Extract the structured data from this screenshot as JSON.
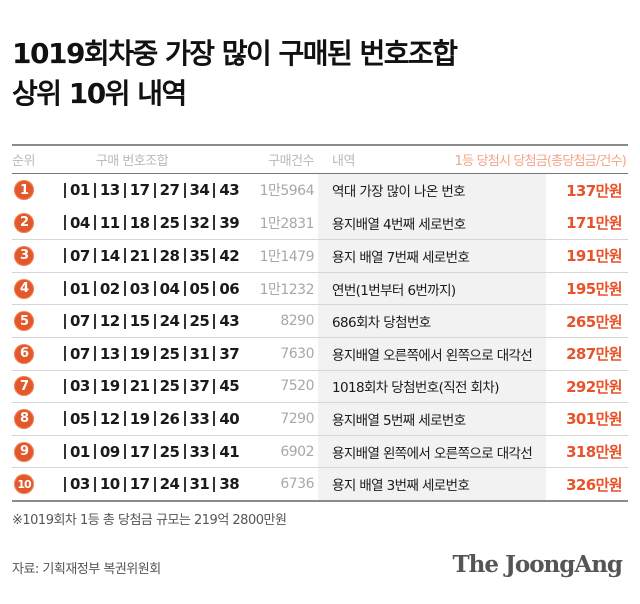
{
  "title": {
    "line1": "1019회차중 가장 많이 구매된 번호조합",
    "line2": "상위 10위 내역"
  },
  "table": {
    "headers": {
      "rank": "순위",
      "numbers": "구매 번호조합",
      "count": "구매건수",
      "description": "내역",
      "prize": "1등 당첨시 당첨금(총당첨금/건수)"
    },
    "rows": [
      {
        "rank": "1",
        "numbers": [
          "01",
          "13",
          "17",
          "27",
          "34",
          "43"
        ],
        "count": "1만5964",
        "description": "역대 가장 많이 나온 번호",
        "prize": "137만원"
      },
      {
        "rank": "2",
        "numbers": [
          "04",
          "11",
          "18",
          "25",
          "32",
          "39"
        ],
        "count": "1만2831",
        "description": "용지배열 4번째 세로번호",
        "prize": "171만원"
      },
      {
        "rank": "3",
        "numbers": [
          "07",
          "14",
          "21",
          "28",
          "35",
          "42"
        ],
        "count": "1만1479",
        "description": "용지 배열 7번째 세로번호",
        "prize": "191만원"
      },
      {
        "rank": "4",
        "numbers": [
          "01",
          "02",
          "03",
          "04",
          "05",
          "06"
        ],
        "count": "1만1232",
        "description": "연번(1번부터 6번까지)",
        "prize": "195만원"
      },
      {
        "rank": "5",
        "numbers": [
          "07",
          "12",
          "15",
          "24",
          "25",
          "43"
        ],
        "count": "8290",
        "description": "686회차 당첨번호",
        "prize": "265만원"
      },
      {
        "rank": "6",
        "numbers": [
          "07",
          "13",
          "19",
          "25",
          "31",
          "37"
        ],
        "count": "7630",
        "description": "용지배열 오른쪽에서 왼쪽으로 대각선",
        "prize": "287만원"
      },
      {
        "rank": "7",
        "numbers": [
          "03",
          "19",
          "21",
          "25",
          "37",
          "45"
        ],
        "count": "7520",
        "description": "1018회차 당첨번호(직전 회차)",
        "prize": "292만원"
      },
      {
        "rank": "8",
        "numbers": [
          "05",
          "12",
          "19",
          "26",
          "33",
          "40"
        ],
        "count": "7290",
        "description": "용지배열 5번째 세로번호",
        "prize": "301만원"
      },
      {
        "rank": "9",
        "numbers": [
          "01",
          "09",
          "17",
          "25",
          "33",
          "41"
        ],
        "count": "6902",
        "description": "용지배열 왼쪽에서 오른쪽으로 대각선",
        "prize": "318만원"
      },
      {
        "rank": "10",
        "numbers": [
          "03",
          "10",
          "17",
          "24",
          "31",
          "38"
        ],
        "count": "6736",
        "description": "용지 배열 3번째 세로번호",
        "prize": "326만원"
      }
    ]
  },
  "footnote": "※1019회차 1등 총 당첨금 규모는 219억 2800만원",
  "source": "자료: 기획재정부 복권위원회",
  "logo": "The JoongAng",
  "colors": {
    "accent": "#e2582a",
    "prize_text": "#e8532a",
    "header_prize": "#f2a58a",
    "desc_bg": "#f2f2f2"
  },
  "chart_data": {
    "type": "table",
    "title": "1019회차중 가장 많이 구매된 번호조합 상위 10위 내역",
    "columns": [
      "순위",
      "구매 번호조합",
      "구매건수",
      "내역",
      "1등 당첨시 당첨금(총당첨금/건수)"
    ],
    "rows": [
      [
        1,
        "01|13|17|27|34|43",
        15964,
        "역대 가장 많이 나온 번호",
        "137만원"
      ],
      [
        2,
        "04|11|18|25|32|39",
        12831,
        "용지배열 4번째 세로번호",
        "171만원"
      ],
      [
        3,
        "07|14|21|28|35|42",
        11479,
        "용지 배열 7번째 세로번호",
        "191만원"
      ],
      [
        4,
        "01|02|03|04|05|06",
        11232,
        "연번(1번부터 6번까지)",
        "195만원"
      ],
      [
        5,
        "07|12|15|24|25|43",
        8290,
        "686회차 당첨번호",
        "265만원"
      ],
      [
        6,
        "07|13|19|25|31|37",
        7630,
        "용지배열 오른쪽에서 왼쪽으로 대각선",
        "287만원"
      ],
      [
        7,
        "03|19|21|25|37|45",
        7520,
        "1018회차 당첨번호(직전 회차)",
        "292만원"
      ],
      [
        8,
        "05|12|19|26|33|40",
        7290,
        "용지배열 5번째 세로번호",
        "301만원"
      ],
      [
        9,
        "01|09|17|25|33|41",
        6902,
        "용지배열 왼쪽에서 오른쪽으로 대각선",
        "318만원"
      ],
      [
        10,
        "03|10|17|24|31|38",
        6736,
        "용지 배열 3번째 세로번호",
        "326만원"
      ]
    ],
    "counts": [
      15964,
      12831,
      11479,
      11232,
      8290,
      7630,
      7520,
      7290,
      6902,
      6736
    ],
    "prizes_manwon": [
      137,
      171,
      191,
      195,
      265,
      287,
      292,
      301,
      318,
      326
    ],
    "footnote": "※1019회차 1등 총 당첨금 규모는 219억 2800만원",
    "source": "자료: 기획재정부 복권위원회"
  }
}
